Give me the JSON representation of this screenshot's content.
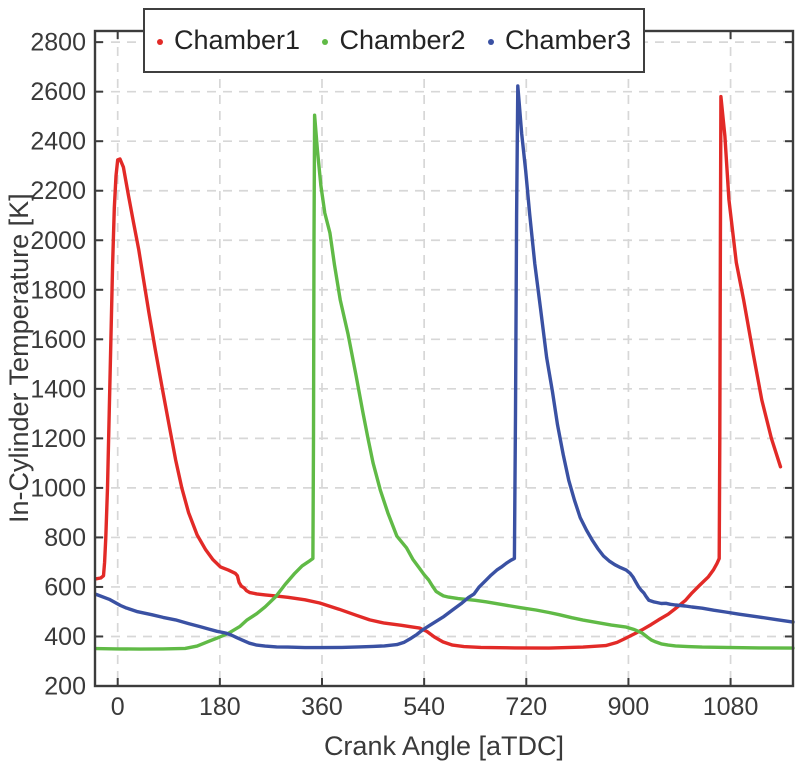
{
  "chart_data": {
    "type": "line",
    "title": "",
    "xlabel": "Crank Angle [aTDC]",
    "ylabel": "In-Cylinder Temperature [K]",
    "xlim": [
      -40,
      1190
    ],
    "ylim": [
      200,
      2845
    ],
    "x_ticks": [
      0,
      180,
      360,
      540,
      720,
      900,
      1080
    ],
    "y_ticks": [
      200,
      400,
      600,
      800,
      1000,
      1200,
      1400,
      1600,
      1800,
      2000,
      2200,
      2400,
      2600,
      2800
    ],
    "grid": "dashed",
    "grid_color": "#d7d7d7",
    "frame_color": "#3c3c3c",
    "tick_label_color": "#3a3a3a",
    "legend_position": "top-center",
    "series": [
      {
        "name": "Chamber1",
        "color": "#e22a27",
        "points": [
          [
            -38,
            633
          ],
          [
            -30,
            636
          ],
          [
            -25,
            645
          ],
          [
            -23,
            700
          ],
          [
            -21,
            800
          ],
          [
            -18,
            1000
          ],
          [
            -15,
            1300
          ],
          [
            -12,
            1600
          ],
          [
            -9,
            1900
          ],
          [
            -6,
            2130
          ],
          [
            -3,
            2260
          ],
          [
            0,
            2325
          ],
          [
            4,
            2328
          ],
          [
            10,
            2295
          ],
          [
            19,
            2180
          ],
          [
            28,
            2070
          ],
          [
            37,
            1963
          ],
          [
            46,
            1835
          ],
          [
            55,
            1708
          ],
          [
            66,
            1560
          ],
          [
            79,
            1397
          ],
          [
            90,
            1260
          ],
          [
            102,
            1114
          ],
          [
            113,
            1000
          ],
          [
            125,
            900
          ],
          [
            140,
            810
          ],
          [
            155,
            750
          ],
          [
            168,
            710
          ],
          [
            181,
            681
          ],
          [
            195,
            668
          ],
          [
            207,
            655
          ],
          [
            211,
            645
          ],
          [
            214,
            618
          ],
          [
            218,
            603
          ],
          [
            223,
            596
          ],
          [
            227,
            585
          ],
          [
            233,
            577
          ],
          [
            245,
            572
          ],
          [
            260,
            568
          ],
          [
            280,
            563
          ],
          [
            300,
            558
          ],
          [
            330,
            548
          ],
          [
            356,
            535
          ],
          [
            390,
            510
          ],
          [
            420,
            486
          ],
          [
            444,
            467
          ],
          [
            470,
            454
          ],
          [
            500,
            445
          ],
          [
            520,
            438
          ],
          [
            532,
            434
          ],
          [
            545,
            420
          ],
          [
            558,
            398
          ],
          [
            573,
            378
          ],
          [
            590,
            365
          ],
          [
            610,
            359
          ],
          [
            640,
            356
          ],
          [
            700,
            354
          ],
          [
            760,
            353
          ],
          [
            820,
            357
          ],
          [
            860,
            363
          ],
          [
            880,
            376
          ],
          [
            896,
            394
          ],
          [
            910,
            410
          ],
          [
            924,
            427
          ],
          [
            940,
            448
          ],
          [
            953,
            467
          ],
          [
            970,
            490
          ],
          [
            983,
            513
          ],
          [
            1000,
            545
          ],
          [
            1012,
            576
          ],
          [
            1026,
            608
          ],
          [
            1041,
            641
          ],
          [
            1050,
            670
          ],
          [
            1056,
            695
          ],
          [
            1060,
            715
          ],
          [
            1061,
            1200
          ],
          [
            1062,
            2000
          ],
          [
            1063,
            2580
          ],
          [
            1070,
            2420
          ],
          [
            1077,
            2165
          ],
          [
            1090,
            1910
          ],
          [
            1103,
            1760
          ],
          [
            1120,
            1540
          ],
          [
            1135,
            1355
          ],
          [
            1152,
            1200
          ],
          [
            1168,
            1085
          ]
        ]
      },
      {
        "name": "Chamber2",
        "color": "#60ba46",
        "points": [
          [
            -38,
            351
          ],
          [
            0,
            350
          ],
          [
            40,
            349
          ],
          [
            80,
            350
          ],
          [
            119,
            352
          ],
          [
            140,
            361
          ],
          [
            160,
            380
          ],
          [
            180,
            398
          ],
          [
            195,
            413
          ],
          [
            215,
            440
          ],
          [
            228,
            467
          ],
          [
            245,
            492
          ],
          [
            260,
            520
          ],
          [
            278,
            560
          ],
          [
            295,
            610
          ],
          [
            312,
            655
          ],
          [
            325,
            685
          ],
          [
            336,
            702
          ],
          [
            344,
            715
          ],
          [
            345,
            1200
          ],
          [
            346,
            2000
          ],
          [
            347,
            2505
          ],
          [
            352,
            2360
          ],
          [
            358,
            2220
          ],
          [
            365,
            2110
          ],
          [
            374,
            2030
          ],
          [
            382,
            1900
          ],
          [
            392,
            1760
          ],
          [
            406,
            1620
          ],
          [
            420,
            1455
          ],
          [
            432,
            1305
          ],
          [
            441,
            1200
          ],
          [
            450,
            1100
          ],
          [
            463,
            990
          ],
          [
            476,
            900
          ],
          [
            492,
            805
          ],
          [
            509,
            758
          ],
          [
            520,
            712
          ],
          [
            531,
            678
          ],
          [
            540,
            650
          ],
          [
            548,
            628
          ],
          [
            554,
            606
          ],
          [
            561,
            582
          ],
          [
            567,
            573
          ],
          [
            574,
            564
          ],
          [
            583,
            559
          ],
          [
            600,
            553
          ],
          [
            630,
            546
          ],
          [
            649,
            540
          ],
          [
            680,
            528
          ],
          [
            710,
            516
          ],
          [
            737,
            507
          ],
          [
            760,
            497
          ],
          [
            778,
            488
          ],
          [
            800,
            476
          ],
          [
            820,
            466
          ],
          [
            845,
            456
          ],
          [
            870,
            446
          ],
          [
            896,
            438
          ],
          [
            910,
            428
          ],
          [
            924,
            414
          ],
          [
            933,
            398
          ],
          [
            941,
            385
          ],
          [
            948,
            378
          ],
          [
            958,
            370
          ],
          [
            970,
            365
          ],
          [
            983,
            362
          ],
          [
            1005,
            359
          ],
          [
            1030,
            357
          ],
          [
            1071,
            356
          ],
          [
            1130,
            354
          ],
          [
            1190,
            353
          ]
        ]
      },
      {
        "name": "Chamber3",
        "color": "#3a51a3",
        "points": [
          [
            -38,
            570
          ],
          [
            -15,
            550
          ],
          [
            5,
            525
          ],
          [
            14,
            516
          ],
          [
            35,
            500
          ],
          [
            60,
            488
          ],
          [
            80,
            477
          ],
          [
            102,
            467
          ],
          [
            125,
            452
          ],
          [
            145,
            440
          ],
          [
            160,
            430
          ],
          [
            175,
            421
          ],
          [
            190,
            414
          ],
          [
            200,
            406
          ],
          [
            210,
            395
          ],
          [
            220,
            385
          ],
          [
            232,
            373
          ],
          [
            245,
            365
          ],
          [
            260,
            361
          ],
          [
            280,
            358
          ],
          [
            300,
            357
          ],
          [
            330,
            355
          ],
          [
            360,
            355
          ],
          [
            395,
            356
          ],
          [
            425,
            358
          ],
          [
            450,
            360
          ],
          [
            470,
            362
          ],
          [
            492,
            367
          ],
          [
            505,
            377
          ],
          [
            515,
            390
          ],
          [
            527,
            408
          ],
          [
            537,
            426
          ],
          [
            550,
            445
          ],
          [
            562,
            462
          ],
          [
            575,
            481
          ],
          [
            590,
            507
          ],
          [
            605,
            532
          ],
          [
            618,
            557
          ],
          [
            628,
            572
          ],
          [
            637,
            600
          ],
          [
            648,
            625
          ],
          [
            658,
            648
          ],
          [
            668,
            668
          ],
          [
            676,
            680
          ],
          [
            685,
            696
          ],
          [
            693,
            708
          ],
          [
            699,
            715
          ],
          [
            701,
            1300
          ],
          [
            703,
            2100
          ],
          [
            705,
            2623
          ],
          [
            712,
            2430
          ],
          [
            719,
            2280
          ],
          [
            726,
            2105
          ],
          [
            735,
            1905
          ],
          [
            745,
            1725
          ],
          [
            756,
            1525
          ],
          [
            766,
            1390
          ],
          [
            775,
            1255
          ],
          [
            785,
            1135
          ],
          [
            795,
            1030
          ],
          [
            805,
            950
          ],
          [
            815,
            880
          ],
          [
            826,
            830
          ],
          [
            836,
            790
          ],
          [
            846,
            755
          ],
          [
            856,
            725
          ],
          [
            866,
            705
          ],
          [
            876,
            690
          ],
          [
            886,
            678
          ],
          [
            896,
            668
          ],
          [
            903,
            655
          ],
          [
            908,
            640
          ],
          [
            913,
            620
          ],
          [
            918,
            600
          ],
          [
            922,
            588
          ],
          [
            927,
            576
          ],
          [
            931,
            562
          ],
          [
            936,
            546
          ],
          [
            944,
            540
          ],
          [
            950,
            537
          ],
          [
            958,
            533
          ],
          [
            966,
            534
          ],
          [
            974,
            530
          ],
          [
            983,
            527
          ],
          [
            1000,
            523
          ],
          [
            1012,
            519
          ],
          [
            1030,
            514
          ],
          [
            1050,
            506
          ],
          [
            1071,
            499
          ],
          [
            1095,
            490
          ],
          [
            1129,
            479
          ],
          [
            1160,
            468
          ],
          [
            1190,
            458
          ]
        ]
      }
    ]
  }
}
